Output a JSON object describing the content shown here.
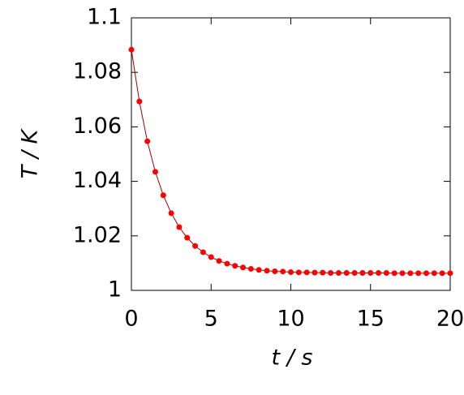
{
  "chart_data": {
    "type": "line",
    "xlabel": "t / s",
    "ylabel": "T / K",
    "x": [
      0,
      0.5,
      1,
      1.5,
      2,
      2.5,
      3,
      3.5,
      4,
      4.5,
      5,
      5.5,
      6,
      6.5,
      7,
      7.5,
      8,
      8.5,
      9,
      9.5,
      10,
      10.5,
      11,
      11.5,
      12,
      12.5,
      13,
      13.5,
      14,
      14.5,
      15,
      15.5,
      16,
      16.5,
      17,
      17.5,
      18,
      18.5,
      19,
      19.5,
      20
    ],
    "series": [
      {
        "name": "T",
        "color": "#ff0000",
        "values": [
          1.0883,
          1.0693,
          1.0547,
          1.0435,
          1.0349,
          1.0283,
          1.0232,
          1.0193,
          1.0163,
          1.014,
          1.0122,
          1.0108,
          1.0098,
          1.009,
          1.0084,
          1.0079,
          1.0075,
          1.0072,
          1.007,
          1.0069,
          1.0067,
          1.0066,
          1.0066,
          1.0065,
          1.0065,
          1.0064,
          1.0064,
          1.0064,
          1.0064,
          1.0064,
          1.0064,
          1.0064,
          1.0064,
          1.0063,
          1.0063,
          1.0063,
          1.0063,
          1.0063,
          1.0063,
          1.0063,
          1.0063
        ]
      }
    ],
    "xlim": [
      0,
      20
    ],
    "xticks": [
      0,
      5,
      10,
      15,
      20
    ],
    "ylim": [
      1,
      1.1
    ],
    "yticks": [
      1,
      1.02,
      1.04,
      1.06,
      1.08,
      1.1
    ]
  }
}
